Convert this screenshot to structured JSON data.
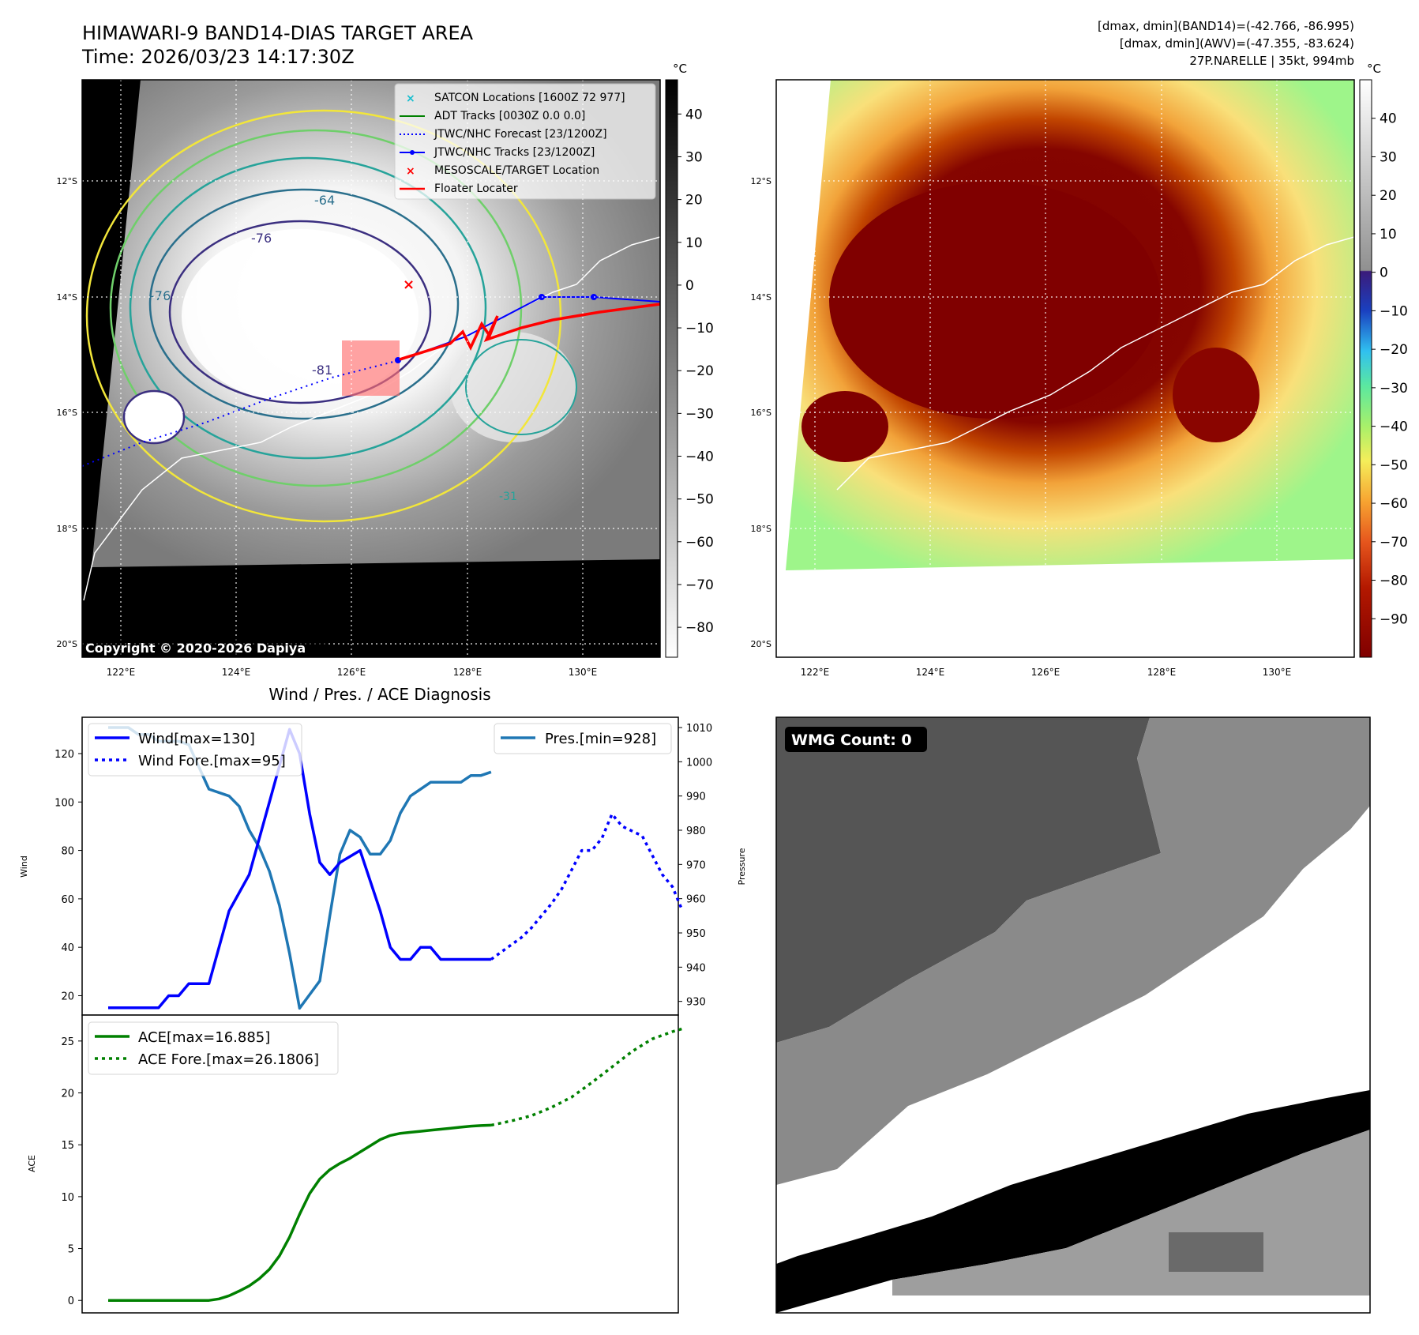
{
  "header": {
    "title_line1": "HIMAWARI-9 BAND14-DIAS TARGET AREA",
    "title_line2": "Time: 2026/03/23 14:17:30Z",
    "info_line1": "[dmax, dmin](BAND14)=(-42.766, -86.995)",
    "info_line2": "[dmax, dmin](AWV)=(-47.355, -83.624)",
    "info_line3": "27P.NARELLE | 35kt, 994mb"
  },
  "map": {
    "lat_labels": [
      "12°S",
      "14°S",
      "16°S",
      "18°S",
      "20°S"
    ],
    "lon_labels": [
      "122°E",
      "124°E",
      "126°E",
      "128°E",
      "130°E"
    ],
    "copyright": "Copyright © 2020-2026 Dapiya",
    "contour_labels": [
      "-64",
      "-76",
      "-76",
      "-81",
      "-31"
    ],
    "legend": [
      {
        "label": "SATCON Locations [1600Z 72 977]",
        "color": "#17becf",
        "marker": "x"
      },
      {
        "label": "ADT Tracks [0030Z 0.0 0.0]",
        "color": "#008000",
        "marker": "line"
      },
      {
        "label": "JTWC/NHC Forecast [23/1200Z]",
        "color": "#0000ff",
        "marker": "dotted"
      },
      {
        "label": "JTWC/NHC Tracks [23/1200Z]",
        "color": "#0000ff",
        "marker": "line-dot"
      },
      {
        "label": "MESOSCALE/TARGET Location",
        "color": "#ff0000",
        "marker": "x"
      },
      {
        "label": "Floater Locater",
        "color": "#ff0000",
        "marker": "line"
      }
    ]
  },
  "colorbars": {
    "unit": "°C",
    "bw_ticks": [
      "40",
      "30",
      "20",
      "10",
      "0",
      "−10",
      "−20",
      "−30",
      "−40",
      "−50",
      "−60",
      "−70",
      "−80"
    ],
    "color_ticks": [
      "40",
      "30",
      "20",
      "10",
      "0",
      "−10",
      "−20",
      "−30",
      "−40",
      "−50",
      "−60",
      "−70",
      "−80",
      "−90"
    ]
  },
  "diag": {
    "title": "Wind / Pres. / ACE Diagnosis",
    "wind_label": "Wind",
    "pres_label": "Pressure",
    "ace_label": "ACE",
    "wmg": "WMG Count: 0"
  },
  "chart_data": [
    {
      "type": "line",
      "title": "Wind / Pres. / ACE Diagnosis",
      "ylabel": "Wind",
      "ylim": [
        12,
        135
      ],
      "yticks": [
        "20",
        "40",
        "60",
        "80",
        "100",
        "120"
      ],
      "series": [
        {
          "name": "Wind[max=130]",
          "color": "#0000ff",
          "style": "solid",
          "x": [
            0,
            3,
            5,
            6,
            7,
            8,
            10,
            12,
            14,
            16,
            18,
            19,
            20,
            21,
            22,
            23,
            25,
            27,
            28,
            29,
            30,
            31,
            32,
            33,
            34,
            35,
            36,
            37,
            38
          ],
          "values": [
            15,
            15,
            15,
            20,
            20,
            25,
            25,
            55,
            70,
            100,
            130,
            120,
            95,
            75,
            70,
            75,
            80,
            55,
            40,
            35,
            35,
            40,
            40,
            35,
            35,
            35,
            35,
            35,
            35
          ]
        },
        {
          "name": "Wind Fore.[max=95]",
          "color": "#0000ff",
          "style": "dotted",
          "x": [
            38,
            39,
            40,
            41,
            42,
            43,
            44,
            45,
            46,
            47,
            48,
            49,
            50,
            51,
            52,
            53,
            54,
            55,
            56,
            57
          ],
          "values": [
            35,
            38,
            41,
            44,
            48,
            53,
            58,
            64,
            72,
            80,
            80,
            85,
            95,
            90,
            88,
            86,
            78,
            70,
            65,
            55
          ]
        }
      ]
    },
    {
      "type": "line",
      "ylabel": "Pressure",
      "ylim": [
        926,
        1013
      ],
      "yticks": [
        "930",
        "940",
        "950",
        "960",
        "970",
        "980",
        "990",
        "1000",
        "1010"
      ],
      "series": [
        {
          "name": "Pres.[min=928]",
          "color": "#1f77b4",
          "style": "solid",
          "x": [
            0,
            2,
            3,
            4,
            5,
            6,
            7,
            8,
            10,
            12,
            13,
            14,
            15,
            16,
            17,
            18,
            19,
            20,
            21,
            22,
            23,
            24,
            25,
            26,
            27,
            28,
            29,
            30,
            31,
            32,
            33,
            34,
            35,
            36,
            37,
            38
          ],
          "values": [
            1010,
            1010,
            1008,
            1008,
            1006,
            1006,
            1006,
            1005,
            992,
            990,
            987,
            980,
            975,
            968,
            958,
            944,
            928,
            932,
            936,
            955,
            973,
            980,
            978,
            973,
            973,
            977,
            985,
            990,
            992,
            994,
            994,
            994,
            994,
            996,
            996,
            997
          ]
        }
      ]
    },
    {
      "type": "line",
      "ylabel": "ACE",
      "ylim": [
        -1.2,
        27.5
      ],
      "yticks": [
        "0",
        "5",
        "10",
        "15",
        "20",
        "25"
      ],
      "series": [
        {
          "name": "ACE[max=16.885]",
          "color": "#008000",
          "style": "solid",
          "x": [
            0,
            10,
            11,
            12,
            13,
            14,
            15,
            16,
            17,
            18,
            19,
            20,
            21,
            22,
            23,
            24,
            25,
            26,
            27,
            28,
            29,
            30,
            31,
            32,
            33,
            34,
            35,
            36,
            37,
            38
          ],
          "values": [
            0,
            0,
            0.15,
            0.45,
            0.9,
            1.4,
            2.1,
            3.0,
            4.3,
            6.1,
            8.3,
            10.3,
            11.7,
            12.6,
            13.2,
            13.7,
            14.3,
            14.9,
            15.5,
            15.9,
            16.1,
            16.2,
            16.3,
            16.4,
            16.5,
            16.6,
            16.7,
            16.8,
            16.85,
            16.885
          ]
        },
        {
          "name": "ACE Fore.[max=26.1806]",
          "color": "#008000",
          "style": "dotted",
          "x": [
            38,
            40,
            42,
            44,
            46,
            48,
            50,
            52,
            54,
            56,
            57
          ],
          "values": [
            16.885,
            17.3,
            17.8,
            18.6,
            19.6,
            21.0,
            22.5,
            24.0,
            25.2,
            25.9,
            26.1806
          ]
        }
      ]
    }
  ]
}
